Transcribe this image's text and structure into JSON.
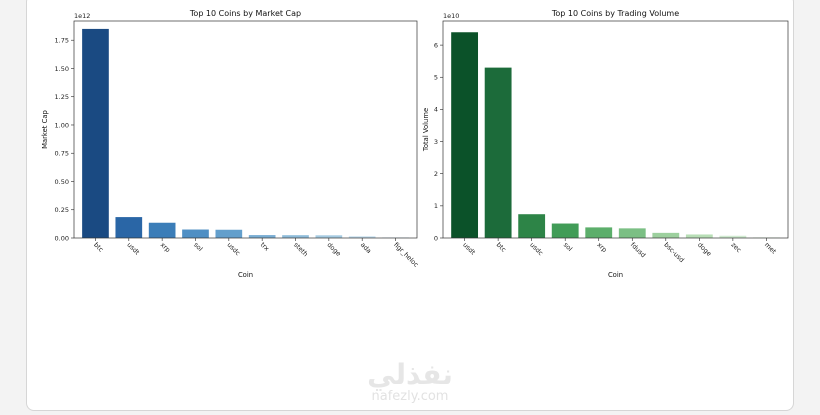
{
  "watermark": {
    "text": "نفذلي",
    "url": "nafezly.com"
  },
  "chart_data": [
    {
      "type": "bar",
      "title": "Top 10 Coins by Market Cap",
      "xlabel": "Coin",
      "ylabel": "Market Cap",
      "offset_label": "1e12",
      "ylim": [
        0,
        1.92
      ],
      "yticks": [
        "0.00",
        "0.25",
        "0.50",
        "0.75",
        "1.00",
        "1.25",
        "1.50",
        "1.75"
      ],
      "ytick_values": [
        0,
        0.25,
        0.5,
        0.75,
        1.0,
        1.25,
        1.5,
        1.75
      ],
      "grid": false,
      "categories": [
        "btc",
        "usdt",
        "xrp",
        "sol",
        "usdc",
        "trx",
        "steth",
        "doge",
        "ada",
        "figr_heloc"
      ],
      "values": [
        1.85,
        0.185,
        0.135,
        0.075,
        0.073,
        0.026,
        0.025,
        0.024,
        0.014,
        0.004
      ],
      "colors": [
        "#1a4a82",
        "#2a66a6",
        "#3b7db8",
        "#4f8fc4",
        "#639fcc",
        "#7aaed3",
        "#8fbcda",
        "#a6cbe2",
        "#bdd9ea",
        "#d5e7f2"
      ]
    },
    {
      "type": "bar",
      "title": "Top 10 Coins by Trading Volume",
      "xlabel": "Coin",
      "ylabel": "Total Volume",
      "offset_label": "1e10",
      "ylim": [
        0,
        6.75
      ],
      "yticks": [
        "0",
        "1",
        "2",
        "3",
        "4",
        "5",
        "6"
      ],
      "ytick_values": [
        0,
        1,
        2,
        3,
        4,
        5,
        6
      ],
      "grid": false,
      "categories": [
        "usdt",
        "btc",
        "usdc",
        "sol",
        "xrp",
        "fdusd",
        "bsc-usd",
        "doge",
        "zec",
        "met"
      ],
      "values": [
        6.4,
        5.3,
        0.74,
        0.45,
        0.33,
        0.3,
        0.16,
        0.11,
        0.07,
        0.02
      ],
      "colors": [
        "#0b5229",
        "#1c6b3a",
        "#2d8447",
        "#419c57",
        "#5cae6b",
        "#7bbf84",
        "#9dd09e",
        "#b8deb6",
        "#d0ead0",
        "#e4f3e4"
      ]
    }
  ]
}
